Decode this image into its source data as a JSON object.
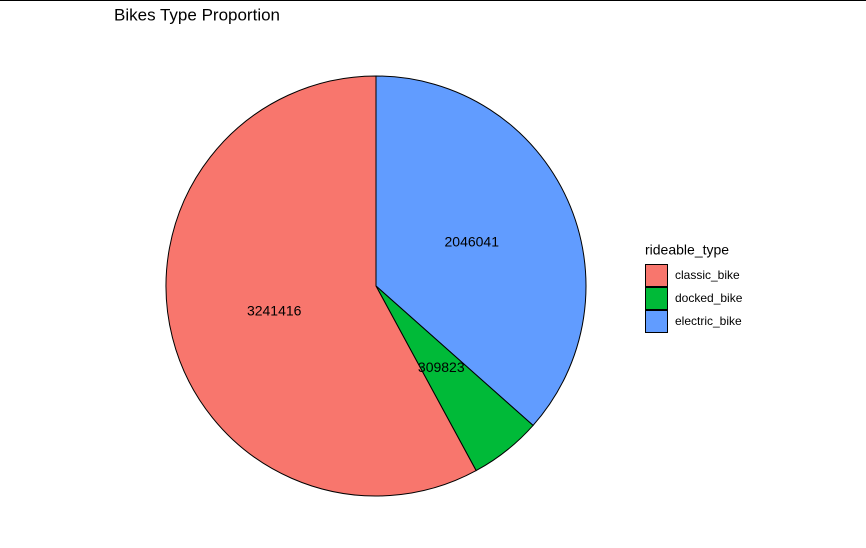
{
  "chart_data": {
    "type": "pie",
    "title": "Bikes Type Proportion",
    "legend_title": "rideable_type",
    "categories": [
      "classic_bike",
      "docked_bike",
      "electric_bike"
    ],
    "values": [
      3241416,
      309823,
      2046041
    ],
    "colors": [
      "#F8766D",
      "#00BA38",
      "#619CFF"
    ],
    "legend": "right"
  }
}
